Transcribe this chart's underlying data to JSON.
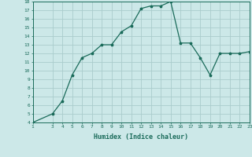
{
  "x": [
    1,
    3,
    4,
    5,
    6,
    7,
    8,
    9,
    10,
    11,
    12,
    13,
    14,
    15,
    16,
    17,
    18,
    19,
    20,
    21,
    22,
    23
  ],
  "y": [
    4,
    5,
    6.5,
    9.5,
    11.5,
    12,
    13,
    13,
    14.5,
    15.2,
    17.2,
    17.5,
    17.5,
    18,
    13.2,
    13.2,
    11.5,
    9.5,
    12,
    12,
    12,
    12.2
  ],
  "xlim": [
    1,
    23
  ],
  "ylim": [
    4,
    18
  ],
  "xlabel": "Humidex (Indice chaleur)",
  "xticks": [
    1,
    3,
    4,
    5,
    6,
    7,
    8,
    9,
    10,
    11,
    12,
    13,
    14,
    15,
    16,
    17,
    18,
    19,
    20,
    21,
    22,
    23
  ],
  "yticks": [
    4,
    5,
    6,
    7,
    8,
    9,
    10,
    11,
    12,
    13,
    14,
    15,
    16,
    17,
    18
  ],
  "line_color": "#1a6b5a",
  "marker": "*",
  "marker_size": 2.5,
  "bg_color": "#cce8e8",
  "grid_color": "#aacccc",
  "axis_label_color": "#1a6b5a",
  "tick_label_color": "#1a6b5a"
}
